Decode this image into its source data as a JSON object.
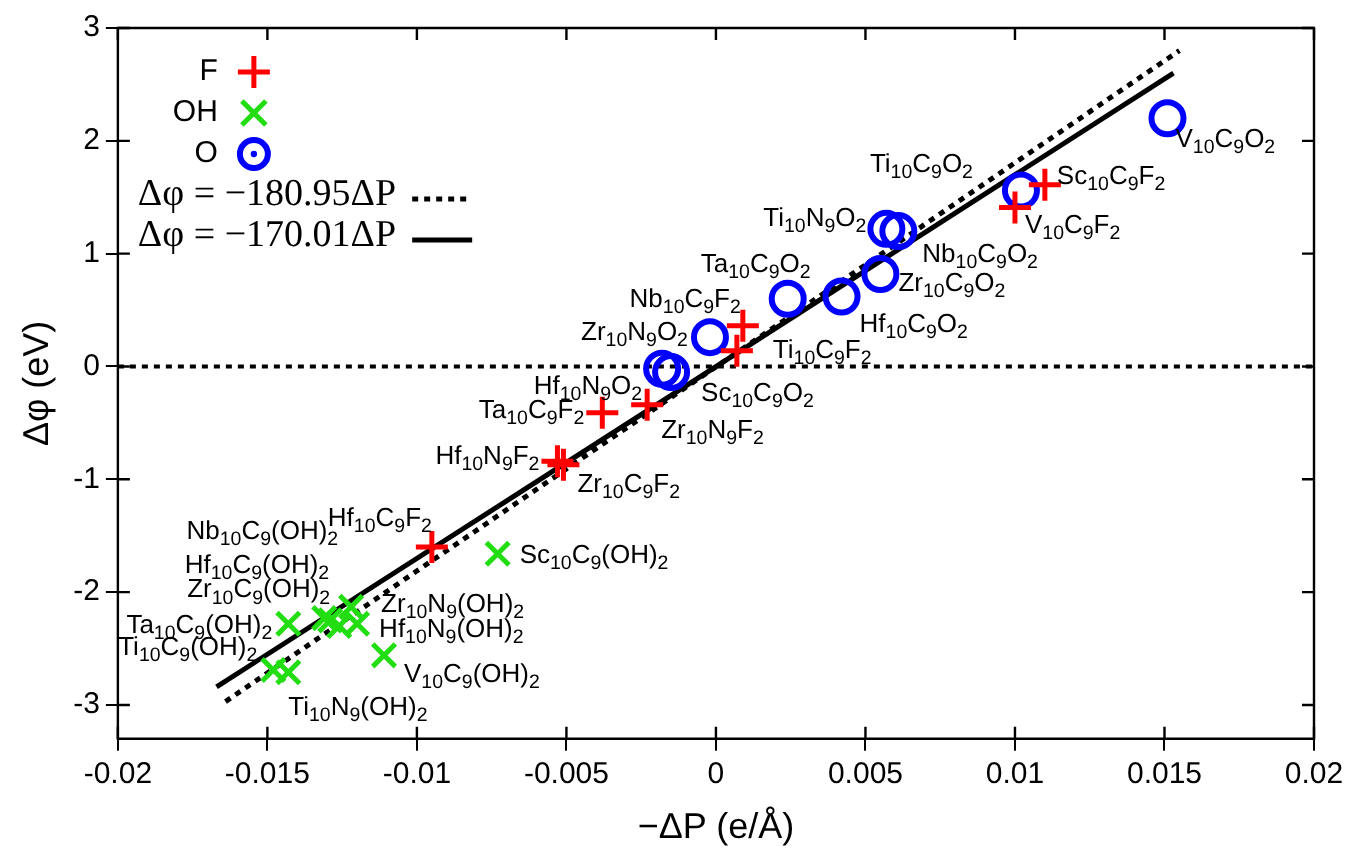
{
  "chart_data": {
    "type": "scatter",
    "xlabel": "−ΔP (e/Å)",
    "ylabel": "Δφ (eV)",
    "xlim": [
      -0.02,
      0.02
    ],
    "xticks": [
      -0.02,
      -0.015,
      -0.01,
      -0.005,
      0,
      0.005,
      0.01,
      0.015,
      0.02
    ],
    "ylim": [
      -3.3,
      3
    ],
    "yticks": [
      -3,
      -2,
      -1,
      0,
      1,
      2,
      3
    ],
    "grid": false,
    "legend": "top left",
    "series": [
      {
        "name": "F",
        "color": "#ff0000",
        "marker": "plus",
        "x": [
          0.011,
          0.01,
          0.0009,
          0.0007,
          -0.0038,
          -0.0023,
          -0.0053,
          -0.0051,
          -0.0095
        ],
        "values": [
          1.61,
          1.41,
          0.36,
          0.14,
          -0.41,
          -0.34,
          -0.84,
          -0.87,
          -1.6
        ]
      },
      {
        "name": "OH",
        "color": "#22dd11",
        "marker": "cross",
        "x": [
          -0.0073,
          -0.0131,
          -0.0126,
          -0.0129,
          -0.0143,
          -0.0148,
          -0.0143,
          -0.0111,
          -0.0122,
          -0.012
        ],
        "values": [
          -1.66,
          -2.23,
          -2.3,
          -2.25,
          -2.28,
          -2.69,
          -2.71,
          -2.56,
          -2.13,
          -2.28
        ]
      },
      {
        "name": "O",
        "color": "#0000ff",
        "marker": "circle",
        "x": [
          0.0151,
          0.0102,
          0.0057,
          0.0061,
          0.0055,
          0.0024,
          0.0042,
          -0.0002,
          -0.0018,
          -0.0015
        ],
        "values": [
          2.2,
          1.56,
          1.22,
          1.2,
          0.82,
          0.6,
          0.62,
          0.26,
          -0.02,
          -0.05
        ]
      },
      {
        "name": "Δφ = −180.95ΔP",
        "type": "line",
        "color": "#000000",
        "line_style": "dotted",
        "marker": "none",
        "x": [
          -0.0164,
          0.0155
        ],
        "values": [
          -2.97,
          2.8
        ]
      },
      {
        "name": "Δφ = −170.01ΔP",
        "type": "line",
        "color": "#000000",
        "line_style": "solid",
        "marker": "none",
        "x": [
          -0.0167,
          0.0153
        ],
        "values": [
          -2.84,
          2.6
        ]
      }
    ],
    "ref_lines": [
      {
        "axis": "y",
        "value": 0,
        "line_style": "dotted",
        "color": "#000000"
      }
    ],
    "annotations": [
      {
        "text": "V$_{10}$C$_{9}$O$_{2}$",
        "x": 0.0151,
        "y": 2.2
      },
      {
        "text": "Ti$_{10}$C$_{9}$O$_{2}$",
        "x": 0.0102,
        "y": 1.56
      },
      {
        "text": "Sc$_{10}$C$_{9}$F$_{2}$",
        "x": 0.011,
        "y": 1.61
      },
      {
        "text": "V$_{10}$C$_{9}$F$_{2}$",
        "x": 0.01,
        "y": 1.41
      },
      {
        "text": "Ti$_{10}$N$_{9}$O$_{2}$",
        "x": 0.0057,
        "y": 1.22
      },
      {
        "text": "Nb$_{10}$C$_{9}$O$_{2}$",
        "x": 0.0061,
        "y": 1.2
      },
      {
        "text": "Zr$_{10}$C$_{9}$O$_{2}$",
        "x": 0.0055,
        "y": 0.82
      },
      {
        "text": "Ta$_{10}$C$_{9}$O$_{2}$",
        "x": 0.0024,
        "y": 0.6
      },
      {
        "text": "Hf$_{10}$C$_{9}$O$_{2}$",
        "x": 0.0042,
        "y": 0.62
      },
      {
        "text": "Nb$_{10}$C$_{9}$F$_{2}$",
        "x": 0.0009,
        "y": 0.36
      },
      {
        "text": "Zr$_{10}$N$_{9}$O$_{2}$",
        "x": -0.0002,
        "y": 0.26
      },
      {
        "text": "Ti$_{10}$C$_{9}$F$_{2}$",
        "x": 0.0007,
        "y": 0.14
      },
      {
        "text": "Hf$_{10}$N$_{9}$O$_{2}$",
        "x": -0.0018,
        "y": -0.02
      },
      {
        "text": "Sc$_{10}$C$_{9}$O$_{2}$",
        "x": -0.0015,
        "y": -0.05
      },
      {
        "text": "Ta$_{10}$C$_{9}$F$_{2}$",
        "x": -0.0038,
        "y": -0.41
      },
      {
        "text": "Zr$_{10}$N$_{9}$F$_{2}$",
        "x": -0.0023,
        "y": -0.34
      },
      {
        "text": "Hf$_{10}$N$_{9}$F$_{2}$",
        "x": -0.0053,
        "y": -0.84
      },
      {
        "text": "Zr$_{10}$C$_{9}$F$_{2}$",
        "x": -0.0051,
        "y": -0.87
      },
      {
        "text": "Hf$_{10}$C$_{9}$F$_{2}$",
        "x": -0.0095,
        "y": -1.6
      },
      {
        "text": "Sc$_{10}$C$_{9}$(OH)$_{2}$",
        "x": -0.0073,
        "y": -1.66
      },
      {
        "text": "Nb$_{10}$C$_{9}$(OH)$_{2}$",
        "x": -0.0131,
        "y": -2.23
      },
      {
        "text": "Hf$_{10}$C$_{9}$(OH)$_{2}$",
        "x": -0.0126,
        "y": -2.3
      },
      {
        "text": "Zr$_{10}$C$_{9}$(OH)$_{2}$",
        "x": -0.0129,
        "y": -2.25
      },
      {
        "text": "Ta$_{10}$C$_{9}$(OH)$_{2}$",
        "x": -0.0143,
        "y": -2.28
      },
      {
        "text": "Ti$_{10}$C$_{9}$(OH)$_{2}$",
        "x": -0.0148,
        "y": -2.69
      },
      {
        "text": "Ti$_{10}$N$_{9}$(OH)$_{2}$",
        "x": -0.0143,
        "y": -2.71
      },
      {
        "text": "V$_{10}$C$_{9}$(OH)$_{2}$",
        "x": -0.0111,
        "y": -2.56
      },
      {
        "text": "Zr$_{10}$N$_{9}$(OH)$_{2}$",
        "x": -0.0122,
        "y": -2.13
      },
      {
        "text": "Hf$_{10}$N$_{9}$(OH)$_{2}$",
        "x": -0.012,
        "y": -2.28
      }
    ]
  }
}
